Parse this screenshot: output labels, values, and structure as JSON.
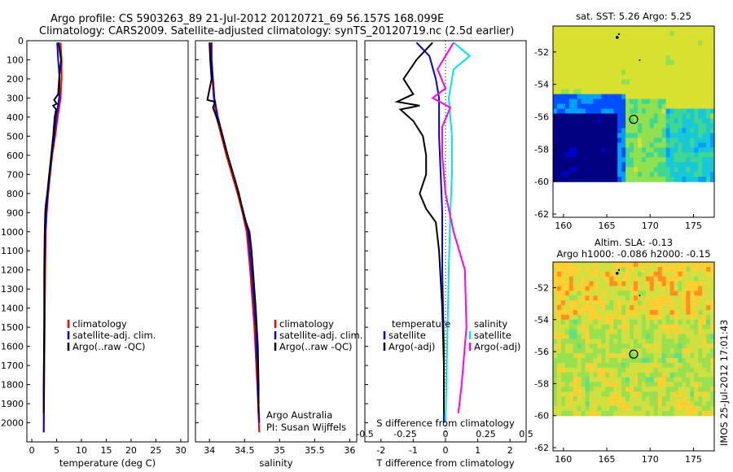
{
  "header": {
    "title_line1": "Argo profile: CS 5903263_89 21-Jul-2012 20120721_69 56.157S 168.099E",
    "title_line2": "Climatology: CARS2009. Satellite-adjusted climatology: synTS_20120719.nc (2.5d earlier)"
  },
  "colors": {
    "climatology": "#ff0000",
    "satellite": "#0000ff",
    "argo": "#000000",
    "sal_satellite": "#00e5e5",
    "sal_argo": "#ff00ff"
  },
  "chart_data": [
    {
      "name": "temperature-profile",
      "type": "line",
      "xlabel": "temperature (deg C)",
      "ylabel": "",
      "xlim": [
        -1,
        31.5
      ],
      "ylim": [
        2100,
        0
      ],
      "xticks": [
        "0",
        "5",
        "10",
        "15",
        "20",
        "25",
        "30"
      ],
      "yticks": [
        "0",
        "100",
        "200",
        "300",
        "400",
        "500",
        "600",
        "700",
        "800",
        "900",
        "1000",
        "1100",
        "1200",
        "1300",
        "1400",
        "1500",
        "1600",
        "1700",
        "1800",
        "1900",
        "2000"
      ],
      "legend": [
        "climatology",
        "satellite-adj. clim.",
        "Argo(..raw -QC)"
      ],
      "series": [
        {
          "key": "climatology",
          "values": [
            [
              5.8,
              10
            ],
            [
              6.0,
              100
            ],
            [
              6.0,
              200
            ],
            [
              5.8,
              300
            ],
            [
              5.2,
              400
            ],
            [
              4.7,
              500
            ],
            [
              4.1,
              600
            ],
            [
              3.7,
              700
            ],
            [
              3.3,
              800
            ],
            [
              3.0,
              900
            ],
            [
              2.8,
              1000
            ],
            [
              2.7,
              1200
            ],
            [
              2.6,
              1500
            ],
            [
              2.5,
              1800
            ],
            [
              2.4,
              2050
            ]
          ]
        },
        {
          "key": "satellite",
          "values": [
            [
              5.1,
              10
            ],
            [
              5.3,
              100
            ],
            [
              5.6,
              200
            ],
            [
              5.5,
              300
            ],
            [
              4.9,
              400
            ],
            [
              4.5,
              500
            ],
            [
              4.0,
              600
            ],
            [
              3.6,
              700
            ],
            [
              3.2,
              800
            ],
            [
              2.9,
              900
            ],
            [
              2.7,
              1000
            ],
            [
              2.6,
              1200
            ],
            [
              2.5,
              1500
            ],
            [
              2.4,
              1800
            ],
            [
              2.4,
              2050
            ]
          ]
        },
        {
          "key": "argo",
          "values": [
            [
              5.4,
              10
            ],
            [
              5.6,
              50
            ],
            [
              5.9,
              100
            ],
            [
              5.7,
              150
            ],
            [
              5.5,
              200
            ],
            [
              5.3,
              280
            ],
            [
              4.5,
              310
            ],
            [
              5.0,
              330
            ],
            [
              4.3,
              340
            ],
            [
              4.9,
              360
            ],
            [
              4.6,
              400
            ],
            [
              4.3,
              500
            ],
            [
              3.9,
              600
            ],
            [
              3.5,
              700
            ],
            [
              3.1,
              800
            ],
            [
              2.8,
              860
            ],
            [
              2.7,
              900
            ],
            [
              2.6,
              1000
            ],
            [
              2.5,
              1200
            ],
            [
              2.5,
              1500
            ],
            [
              2.4,
              1800
            ],
            [
              2.4,
              1950
            ]
          ]
        }
      ]
    },
    {
      "name": "salinity-profile",
      "type": "line",
      "xlabel": "salinity",
      "ylabel": "",
      "xlim": [
        33.8,
        36.1
      ],
      "ylim": [
        2100,
        0
      ],
      "xticks": [
        "34",
        "34.5",
        "35",
        "35.5",
        "36"
      ],
      "legend": [
        "climatology",
        "satellite-adj. clim.",
        "Argo(..raw -QC)"
      ],
      "annotation": [
        "Argo Australia",
        "PI: Susan Wijffels"
      ],
      "series": [
        {
          "key": "climatology",
          "values": [
            [
              34.02,
              10
            ],
            [
              34.02,
              100
            ],
            [
              34.04,
              200
            ],
            [
              34.06,
              300
            ],
            [
              34.1,
              400
            ],
            [
              34.17,
              500
            ],
            [
              34.24,
              600
            ],
            [
              34.32,
              700
            ],
            [
              34.4,
              800
            ],
            [
              34.47,
              900
            ],
            [
              34.53,
              1000
            ],
            [
              34.58,
              1200
            ],
            [
              34.64,
              1500
            ],
            [
              34.68,
              1800
            ],
            [
              34.71,
              2050
            ]
          ]
        },
        {
          "key": "satellite",
          "values": [
            [
              34.03,
              10
            ],
            [
              34.03,
              100
            ],
            [
              34.05,
              200
            ],
            [
              34.07,
              300
            ],
            [
              34.12,
              400
            ],
            [
              34.19,
              500
            ],
            [
              34.26,
              600
            ],
            [
              34.34,
              700
            ],
            [
              34.42,
              800
            ],
            [
              34.48,
              900
            ],
            [
              34.55,
              1000
            ],
            [
              34.6,
              1200
            ],
            [
              34.66,
              1500
            ],
            [
              34.69,
              1800
            ],
            [
              34.71,
              2000
            ]
          ]
        },
        {
          "key": "argo",
          "values": [
            [
              34.0,
              10
            ],
            [
              34.01,
              100
            ],
            [
              34.03,
              200
            ],
            [
              33.97,
              310
            ],
            [
              34.08,
              320
            ],
            [
              34.05,
              350
            ],
            [
              34.15,
              450
            ],
            [
              34.22,
              550
            ],
            [
              34.3,
              650
            ],
            [
              34.38,
              750
            ],
            [
              34.45,
              850
            ],
            [
              34.52,
              950
            ],
            [
              34.57,
              1000
            ],
            [
              34.6,
              1100
            ],
            [
              34.62,
              1200
            ],
            [
              34.66,
              1400
            ],
            [
              34.69,
              1600
            ],
            [
              34.7,
              1800
            ],
            [
              34.7,
              1950
            ]
          ]
        }
      ]
    },
    {
      "name": "difference-profile",
      "type": "line",
      "xlabel": "T difference from climatology",
      "xlabel_top": "S difference from climatology",
      "xlim": [
        -2.5,
        2.5
      ],
      "ylim": [
        2100,
        0
      ],
      "xticks": [
        "-2",
        "-1",
        "0",
        "1",
        "2"
      ],
      "xticks_top": [
        "-0.5",
        "-0.25",
        "0",
        "0.25",
        "0.5"
      ],
      "legend_temperature_title": "temperature",
      "legend_salinity_title": "salinity",
      "legend_temperature": [
        "satellite",
        "Argo(-adj)"
      ],
      "legend_salinity": [
        "satellite",
        "Argo(-adj)"
      ],
      "series": [
        {
          "key": "t_satellite",
          "values": [
            [
              -0.9,
              10
            ],
            [
              -0.5,
              80
            ],
            [
              -0.3,
              200
            ],
            [
              -0.2,
              300
            ],
            [
              -0.2,
              400
            ],
            [
              -0.2,
              500
            ],
            [
              -0.15,
              700
            ],
            [
              -0.1,
              900
            ],
            [
              -0.1,
              1200
            ],
            [
              -0.05,
              1600
            ],
            [
              -0.05,
              2000
            ]
          ]
        },
        {
          "key": "t_argo",
          "values": [
            [
              -0.4,
              10
            ],
            [
              -0.9,
              100
            ],
            [
              -1.3,
              200
            ],
            [
              -1.0,
              280
            ],
            [
              -1.5,
              320
            ],
            [
              -0.8,
              340
            ],
            [
              -1.4,
              360
            ],
            [
              -1.0,
              420
            ],
            [
              -0.7,
              500
            ],
            [
              -0.6,
              600
            ],
            [
              -0.6,
              700
            ],
            [
              -0.8,
              800
            ],
            [
              -0.6,
              880
            ],
            [
              -0.3,
              950
            ],
            [
              -0.2,
              1100
            ],
            [
              -0.1,
              1400
            ],
            [
              -0.05,
              1700
            ],
            [
              -0.05,
              1950
            ]
          ]
        },
        {
          "key": "s_satellite",
          "values": [
            [
              0.05,
              10
            ],
            [
              0.15,
              80
            ],
            [
              0.05,
              150
            ],
            [
              0.02,
              300
            ],
            [
              0.04,
              500
            ],
            [
              0.04,
              700
            ],
            [
              0.03,
              900
            ],
            [
              0.02,
              1200
            ],
            [
              0.01,
              1600
            ],
            [
              0.0,
              2000
            ]
          ]
        },
        {
          "key": "s_argo",
          "values": [
            [
              0.05,
              10
            ],
            [
              -0.05,
              150
            ],
            [
              0.0,
              250
            ],
            [
              -0.08,
              300
            ],
            [
              0.03,
              350
            ],
            [
              -0.02,
              450
            ],
            [
              -0.02,
              600
            ],
            [
              0.0,
              800
            ],
            [
              0.05,
              1000
            ],
            [
              0.12,
              1200
            ],
            [
              0.13,
              1500
            ],
            [
              0.1,
              1800
            ],
            [
              0.08,
              1950
            ]
          ]
        }
      ]
    },
    {
      "name": "sst-map",
      "type": "heatmap",
      "title": "sat. SST: 5.26 Argo: 5.25",
      "xticks": [
        "160",
        "165",
        "170",
        "175"
      ],
      "yticks": [
        "-52",
        "-54",
        "-56",
        "-58",
        "-60",
        "-62"
      ]
    },
    {
      "name": "sla-map",
      "type": "heatmap",
      "title_line1": "Altim. SLA: -0.13",
      "title_line2": "Argo h1000: -0.086 h2000: -0.15",
      "xticks": [
        "160",
        "165",
        "170",
        "175"
      ],
      "yticks": [
        "-52",
        "-54",
        "-56",
        "-58",
        "-60",
        "-62"
      ]
    }
  ],
  "stamp": "IMOS 25-Jul-2012 17:01:43"
}
